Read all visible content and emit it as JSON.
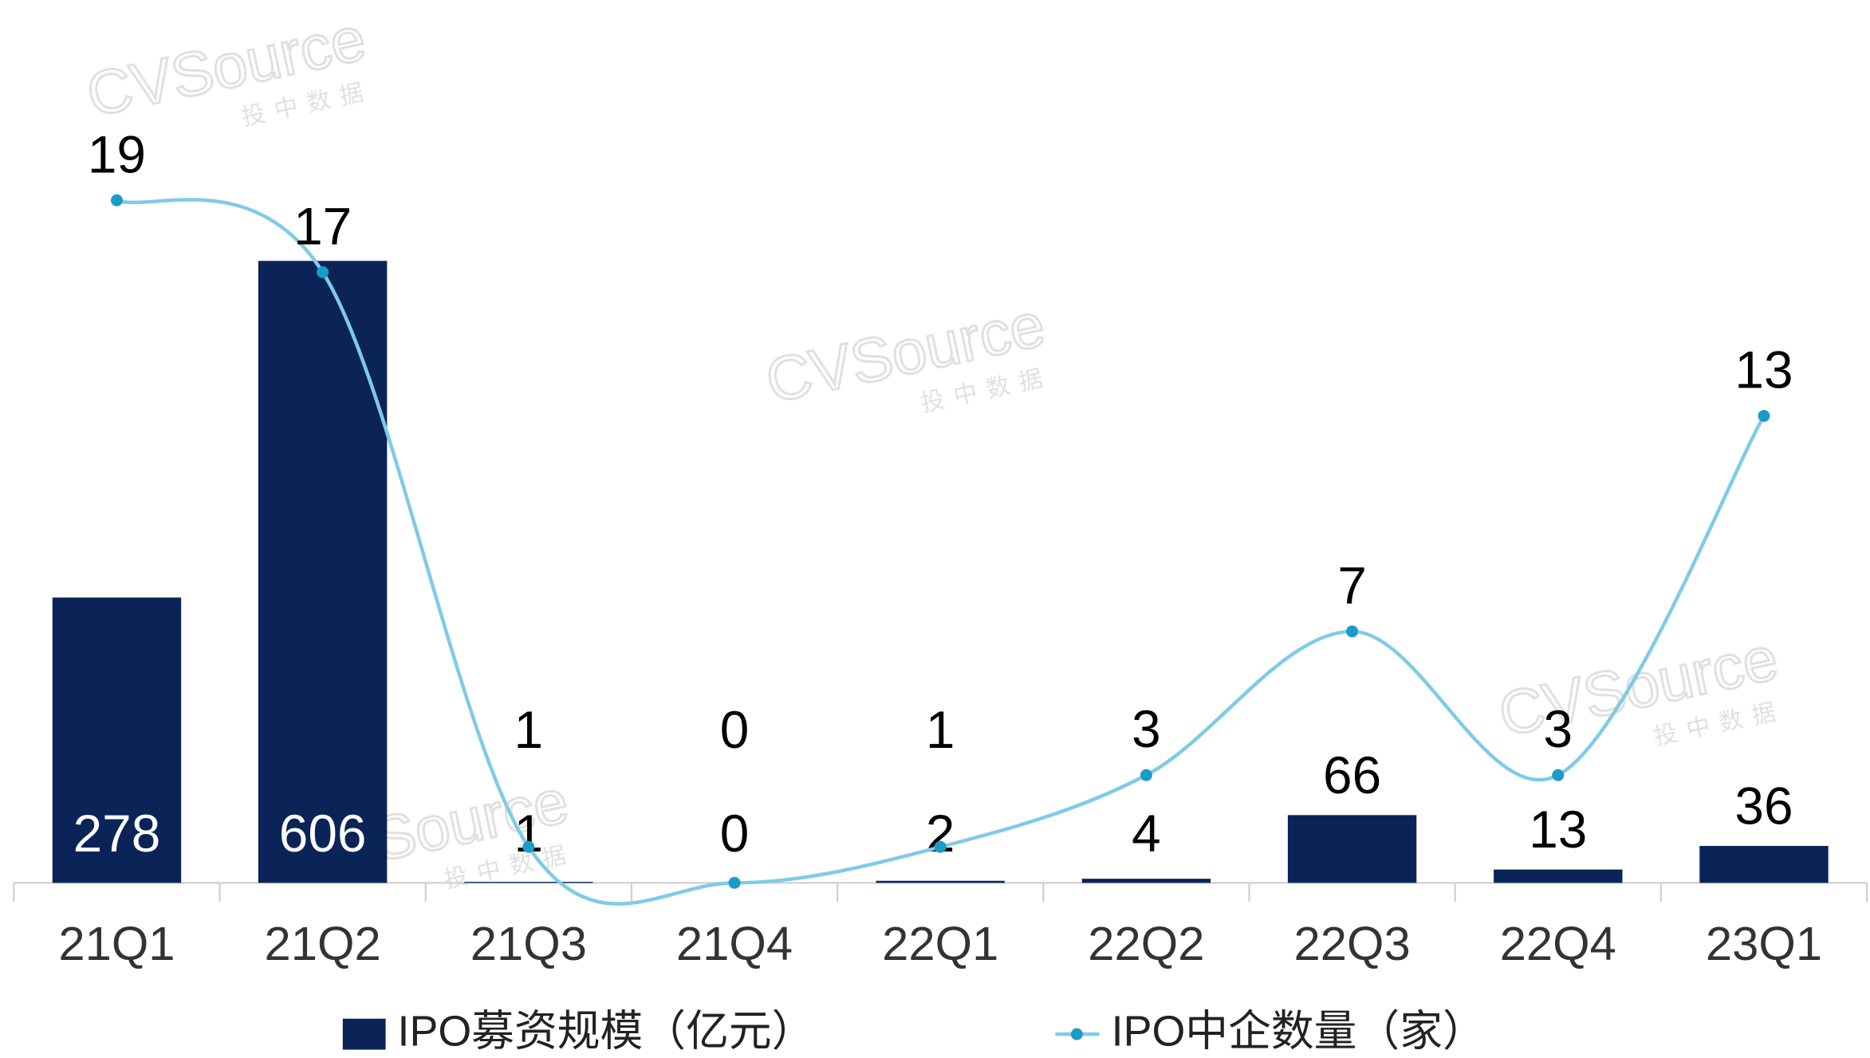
{
  "chart_data": {
    "type": "bar-line",
    "watermark": {
      "brand": "CVSource",
      "sub": "投中数据"
    },
    "categories": [
      "21Q1",
      "21Q2",
      "21Q3",
      "21Q4",
      "22Q1",
      "22Q2",
      "22Q3",
      "22Q4",
      "23Q1"
    ],
    "series": [
      {
        "name": "IPO募资规模（亿元）",
        "type": "bar",
        "color": "#0a2458",
        "values": [
          278,
          606,
          1,
          0,
          2,
          4,
          66,
          13,
          36
        ]
      },
      {
        "name": "IPO中企数量（家）",
        "type": "line",
        "axis": "y2",
        "color": "#7fcbe6",
        "values": [
          19,
          17,
          1,
          0,
          1,
          3,
          7,
          3,
          13
        ]
      }
    ],
    "ylim": [
      0,
      700
    ],
    "y2lim": [
      0,
      20
    ],
    "legend": "bottom"
  }
}
